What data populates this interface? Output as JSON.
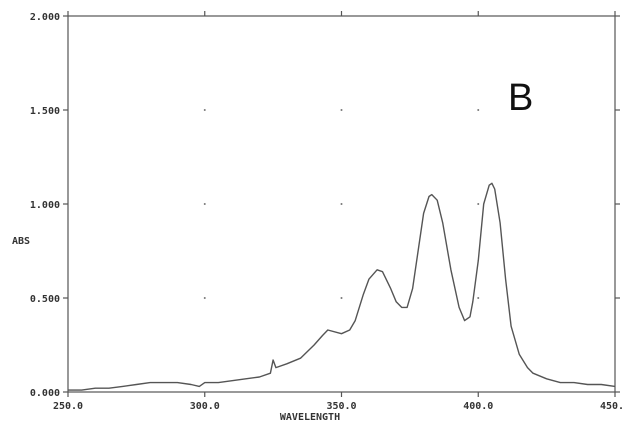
{
  "chart_data": {
    "type": "line",
    "panel_label": "B",
    "xlabel": "WAVELENGTH",
    "ylabel": "ABS",
    "xlim": [
      250,
      450
    ],
    "ylim": [
      0,
      2
    ],
    "x_ticks": [
      250,
      300,
      350,
      400,
      450
    ],
    "x_tick_labels": [
      "250.0",
      "300.0",
      "350.0",
      "400.0",
      "450.0"
    ],
    "y_ticks": [
      0,
      0.5,
      1,
      1.5,
      2
    ],
    "y_tick_labels": [
      "0.000",
      "0.500",
      "1.000",
      "1.500",
      "2.000"
    ],
    "grid": "dotted",
    "series": [
      {
        "x": [
          250,
          255,
          260,
          265,
          270,
          275,
          280,
          285,
          290,
          295,
          298,
          300,
          305,
          310,
          315,
          320,
          324,
          325,
          326,
          330,
          335,
          340,
          343,
          345,
          350,
          353,
          355,
          358,
          360,
          363,
          365,
          368,
          370,
          372,
          374,
          376,
          378,
          380,
          382,
          383,
          385,
          387,
          390,
          393,
          395,
          397,
          398,
          400,
          402,
          404,
          405,
          406,
          408,
          410,
          412,
          415,
          418,
          420,
          425,
          430,
          435,
          440,
          445,
          450
        ],
        "y": [
          0.01,
          0.01,
          0.02,
          0.02,
          0.03,
          0.04,
          0.05,
          0.05,
          0.05,
          0.04,
          0.03,
          0.05,
          0.05,
          0.06,
          0.07,
          0.08,
          0.1,
          0.17,
          0.13,
          0.15,
          0.18,
          0.25,
          0.3,
          0.33,
          0.31,
          0.33,
          0.38,
          0.52,
          0.6,
          0.65,
          0.64,
          0.55,
          0.48,
          0.45,
          0.45,
          0.55,
          0.75,
          0.95,
          1.04,
          1.05,
          1.02,
          0.9,
          0.65,
          0.45,
          0.38,
          0.4,
          0.48,
          0.7,
          1.0,
          1.1,
          1.11,
          1.08,
          0.9,
          0.6,
          0.35,
          0.2,
          0.13,
          0.1,
          0.07,
          0.05,
          0.05,
          0.04,
          0.04,
          0.03
        ]
      }
    ]
  }
}
